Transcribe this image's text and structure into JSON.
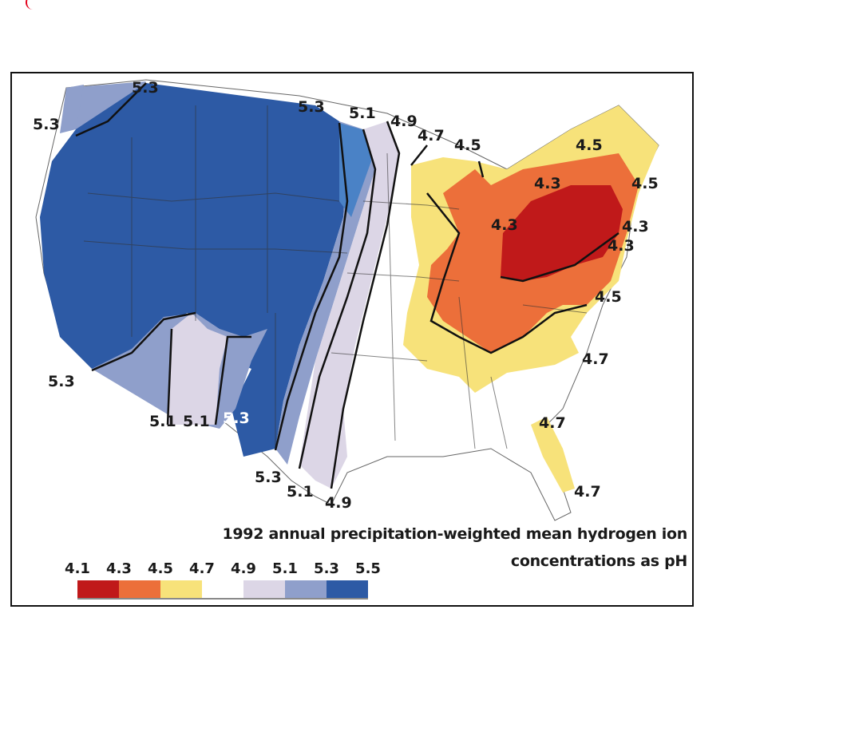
{
  "title_line1": "1992 annual precipitation-weighted mean hydrogen ion",
  "title_line2": "concentrations as pH",
  "legend": {
    "ticks": [
      "4.1",
      "4.3",
      "4.5",
      "4.7",
      "4.9",
      "5.1",
      "5.3",
      "5.5"
    ],
    "colors": [
      "#c0191a",
      "#ec6f3a",
      "#f7e27a",
      "#ffffff",
      "#dcd6e6",
      "#8f9fcb",
      "#2d5aa5"
    ]
  },
  "contour_labels": {
    "west_nw": "5.3",
    "west_n": "5.3",
    "west_sw": "5.3",
    "plains_n": "5.3",
    "plains_n2": "5.1",
    "plains_n3": "4.9",
    "lakes_n": "4.7",
    "lakes_n2": "4.5",
    "maine": "4.5",
    "ne_w": "4.3",
    "ne_e": "4.5",
    "oh": "4.3",
    "ne_coast1": "4.3",
    "ne_coast2": "4.3",
    "midatl": "4.5",
    "carolina": "4.7",
    "sw1": "5.1",
    "sw2": "5.1",
    "sw3": "5.3",
    "tx1": "5.3",
    "tx2": "5.1",
    "tx3": "4.9",
    "fl_n": "4.7",
    "fl_s": "4.7"
  }
}
